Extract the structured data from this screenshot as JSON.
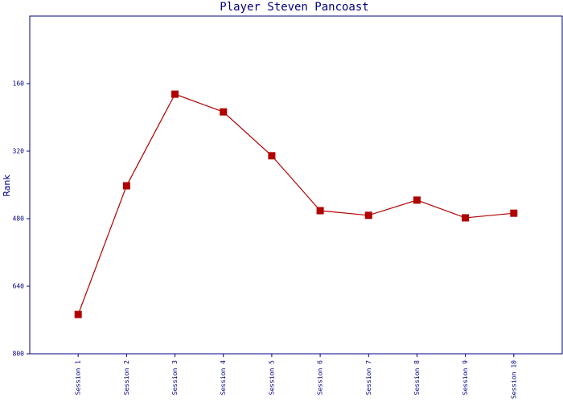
{
  "chart_data": {
    "type": "line",
    "title": "Player Steven Pancoast",
    "y_label": "Rank",
    "categories": [
      "Session 1",
      "Session 2",
      "Session 3",
      "Session 4",
      "Session 5",
      "Session 6",
      "Session 7",
      "Session 8",
      "Session 9",
      "Session 10"
    ],
    "series": [
      {
        "name": "Rank",
        "color": "#b00000",
        "values": [
          707,
          402,
          185,
          227,
          331,
          461,
          472,
          436,
          478,
          467
        ]
      }
    ],
    "ylim": [
      800,
      0
    ],
    "yticks": [
      160,
      320,
      480,
      640,
      800
    ],
    "grid": false
  }
}
